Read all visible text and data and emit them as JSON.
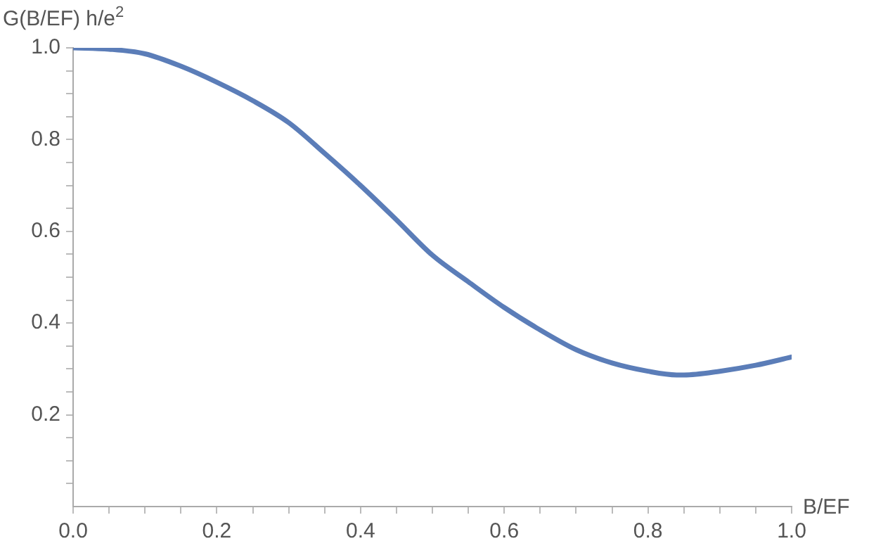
{
  "chart_data": {
    "type": "line",
    "xlabel": "B/EF",
    "ylabel": "G(B/EF) h/e$^{2}$",
    "x": [
      0,
      0.05,
      0.1,
      0.15,
      0.2,
      0.25,
      0.3,
      0.35,
      0.4,
      0.45,
      0.5,
      0.55,
      0.6,
      0.65,
      0.7,
      0.75,
      0.8,
      0.84,
      0.85,
      0.9,
      0.95,
      1.0
    ],
    "series": [
      {
        "color": "#5b7db8",
        "values": [
          1.0,
          0.997,
          0.987,
          0.96,
          0.925,
          0.885,
          0.837,
          0.77,
          0.7,
          0.625,
          0.548,
          0.49,
          0.434,
          0.385,
          0.342,
          0.313,
          0.295,
          0.287,
          0.287,
          0.295,
          0.308,
          0.326
        ]
      }
    ],
    "xlim": [
      0,
      1
    ],
    "ylim": [
      0,
      1
    ],
    "xticks": [
      {
        "value": 0,
        "label": "0.0"
      },
      {
        "value": 0.05,
        "label": null
      },
      {
        "value": 0.1,
        "label": null
      },
      {
        "value": 0.15,
        "label": null
      },
      {
        "value": 0.2,
        "label": "0.2"
      },
      {
        "value": 0.25,
        "label": null
      },
      {
        "value": 0.3,
        "label": null
      },
      {
        "value": 0.35,
        "label": null
      },
      {
        "value": 0.4,
        "label": "0.4"
      },
      {
        "value": 0.45,
        "label": null
      },
      {
        "value": 0.5,
        "label": null
      },
      {
        "value": 0.55,
        "label": null
      },
      {
        "value": 0.6,
        "label": "0.6"
      },
      {
        "value": 0.65,
        "label": null
      },
      {
        "value": 0.7,
        "label": null
      },
      {
        "value": 0.75,
        "label": null
      },
      {
        "value": 0.8,
        "label": "0.8"
      },
      {
        "value": 0.85,
        "label": null
      },
      {
        "value": 0.9,
        "label": null
      },
      {
        "value": 0.95,
        "label": null
      },
      {
        "value": 1.0,
        "label": "1.0"
      }
    ],
    "yticks": [
      {
        "value": 0.05,
        "label": null
      },
      {
        "value": 0.1,
        "label": null
      },
      {
        "value": 0.15,
        "label": null
      },
      {
        "value": 0.2,
        "label": "0.2"
      },
      {
        "value": 0.25,
        "label": null
      },
      {
        "value": 0.3,
        "label": null
      },
      {
        "value": 0.35,
        "label": null
      },
      {
        "value": 0.4,
        "label": "0.4"
      },
      {
        "value": 0.45,
        "label": null
      },
      {
        "value": 0.5,
        "label": null
      },
      {
        "value": 0.55,
        "label": null
      },
      {
        "value": 0.6,
        "label": "0.6"
      },
      {
        "value": 0.65,
        "label": null
      },
      {
        "value": 0.7,
        "label": null
      },
      {
        "value": 0.75,
        "label": null
      },
      {
        "value": 0.8,
        "label": "0.8"
      },
      {
        "value": 0.85,
        "label": null
      },
      {
        "value": 0.9,
        "label": null
      },
      {
        "value": 0.95,
        "label": null
      },
      {
        "value": 1.0,
        "label": "1.0"
      }
    ],
    "grid": false,
    "legend": false,
    "marker": "none",
    "line_style": "solid"
  }
}
